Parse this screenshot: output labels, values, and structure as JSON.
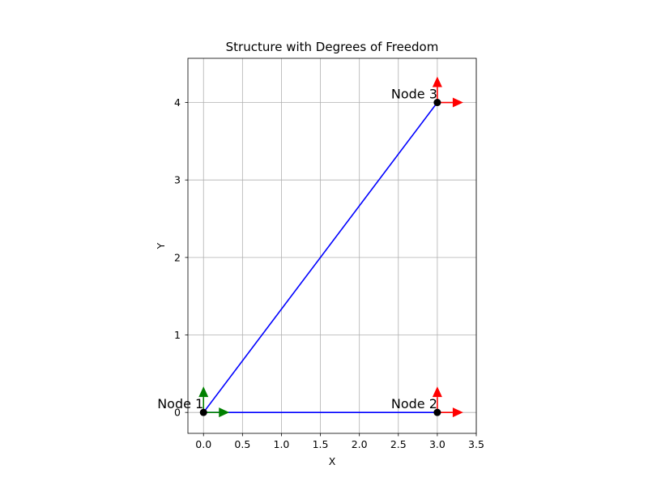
{
  "chart_data": {
    "type": "line",
    "title": "Structure with Degrees of Freedom",
    "xlabel": "X",
    "ylabel": "Y",
    "xlim": [
      -0.2,
      3.5
    ],
    "ylim": [
      -0.27,
      4.57
    ],
    "xticks": [
      0.0,
      0.5,
      1.0,
      1.5,
      2.0,
      2.5,
      3.0,
      3.5
    ],
    "xtick_labels": [
      "0.0",
      "0.5",
      "1.0",
      "1.5",
      "2.0",
      "2.5",
      "3.0",
      "3.5"
    ],
    "yticks": [
      0,
      1,
      2,
      3,
      4
    ],
    "ytick_labels": [
      "0",
      "1",
      "2",
      "3",
      "4"
    ],
    "grid": true,
    "aspect": "equal",
    "nodes": [
      {
        "label": "Node 1",
        "x": 0,
        "y": 0
      },
      {
        "label": "Node 2",
        "x": 3,
        "y": 0
      },
      {
        "label": "Node 3",
        "x": 3,
        "y": 4
      }
    ],
    "elements": [
      {
        "from": 0,
        "to": 1
      },
      {
        "from": 0,
        "to": 2
      }
    ],
    "dof_arrows": [
      {
        "node": 0,
        "direction": "x",
        "color": "#008000"
      },
      {
        "node": 0,
        "direction": "y",
        "color": "#008000"
      },
      {
        "node": 1,
        "direction": "x",
        "color": "#ff0000"
      },
      {
        "node": 1,
        "direction": "y",
        "color": "#ff0000"
      },
      {
        "node": 2,
        "direction": "x",
        "color": "#ff0000"
      },
      {
        "node": 2,
        "direction": "y",
        "color": "#ff0000"
      }
    ],
    "colors": {
      "element": "#0000ff",
      "node": "#000000",
      "grid": "#b0b0b0"
    }
  }
}
